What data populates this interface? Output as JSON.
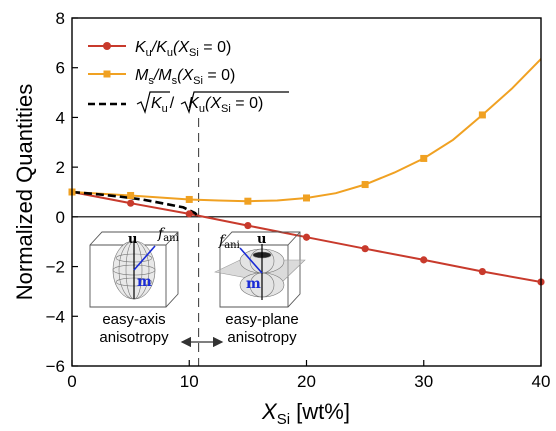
{
  "chart_data": {
    "type": "line",
    "x_axis": {
      "ticks": [
        "0",
        "10",
        "20",
        "30",
        "40"
      ],
      "min": 0,
      "max": 40
    },
    "y_axis": {
      "label": "Normalized Quantities",
      "ticks": [
        "−6",
        "−4",
        "−2",
        "0",
        "2",
        "4",
        "6",
        "8"
      ],
      "min": -6,
      "max": 8
    },
    "x_label": {
      "main": "X",
      "sub": "Si",
      "unit": " [wt%]"
    },
    "series": [
      {
        "id": "ku",
        "legend": {
          "a": "K",
          "a_sub": "u",
          "mid": "/K",
          "mid_sub": "u",
          "cond": "(X",
          "cond_sub": "Si",
          "tail": " = 0)"
        },
        "color": "#c83a2c",
        "marker": "circle",
        "line": "solid",
        "points": [
          [
            0,
            1.0
          ],
          [
            5,
            0.55
          ],
          [
            10,
            0.12
          ],
          [
            15,
            -0.35
          ],
          [
            20,
            -0.82
          ],
          [
            25,
            -1.28
          ],
          [
            30,
            -1.73
          ],
          [
            35,
            -2.2
          ],
          [
            40,
            -2.62
          ]
        ]
      },
      {
        "id": "ms",
        "legend": {
          "a": "M",
          "a_sub": "s",
          "mid": "/M",
          "mid_sub": "s",
          "cond": "(X",
          "cond_sub": "Si",
          "tail": " = 0)"
        },
        "color": "#f0a122",
        "marker": "square",
        "line": "solid",
        "curve": [
          [
            0,
            1.0
          ],
          [
            2.5,
            0.93
          ],
          [
            5,
            0.86
          ],
          [
            7.5,
            0.78
          ],
          [
            10,
            0.7
          ],
          [
            12.5,
            0.66
          ],
          [
            15,
            0.63
          ],
          [
            17.5,
            0.66
          ],
          [
            20,
            0.76
          ],
          [
            22.5,
            0.95
          ],
          [
            25,
            1.3
          ],
          [
            27.5,
            1.78
          ],
          [
            30,
            2.35
          ],
          [
            32.5,
            3.1
          ],
          [
            35,
            4.1
          ],
          [
            37.5,
            5.15
          ],
          [
            40,
            6.35
          ]
        ],
        "points": [
          [
            0,
            1.0
          ],
          [
            5,
            0.86
          ],
          [
            10,
            0.7
          ],
          [
            15,
            0.63
          ],
          [
            20,
            0.76
          ],
          [
            25,
            1.3
          ],
          [
            30,
            2.35
          ],
          [
            35,
            4.1
          ]
        ]
      },
      {
        "id": "sqrt",
        "legend": {
          "a": "K",
          "a_sub": "u",
          "mid": "/",
          "mid2": "K",
          "mid2_sub": "u",
          "cond": "(X",
          "cond_sub": "Si",
          "tail": " = 0)"
        },
        "color": "#000000",
        "marker": "none",
        "line": "dashed",
        "curve": [
          [
            0,
            1.0
          ],
          [
            2,
            0.92
          ],
          [
            4,
            0.82
          ],
          [
            6,
            0.7
          ],
          [
            8,
            0.52
          ],
          [
            9.5,
            0.38
          ],
          [
            10.5,
            0.15
          ],
          [
            10.8,
            0.0
          ]
        ]
      }
    ],
    "vline_x": 10.8,
    "zero_line": true,
    "legend_position": "top-left",
    "annotations": {
      "left_label_line1": "easy-axis",
      "left_label_line2": "anisotropy",
      "right_label_line1": "easy-plane",
      "right_label_line2": "anisotropy",
      "u": "u",
      "m": "m",
      "f": "f",
      "f_sub": "ani"
    }
  }
}
